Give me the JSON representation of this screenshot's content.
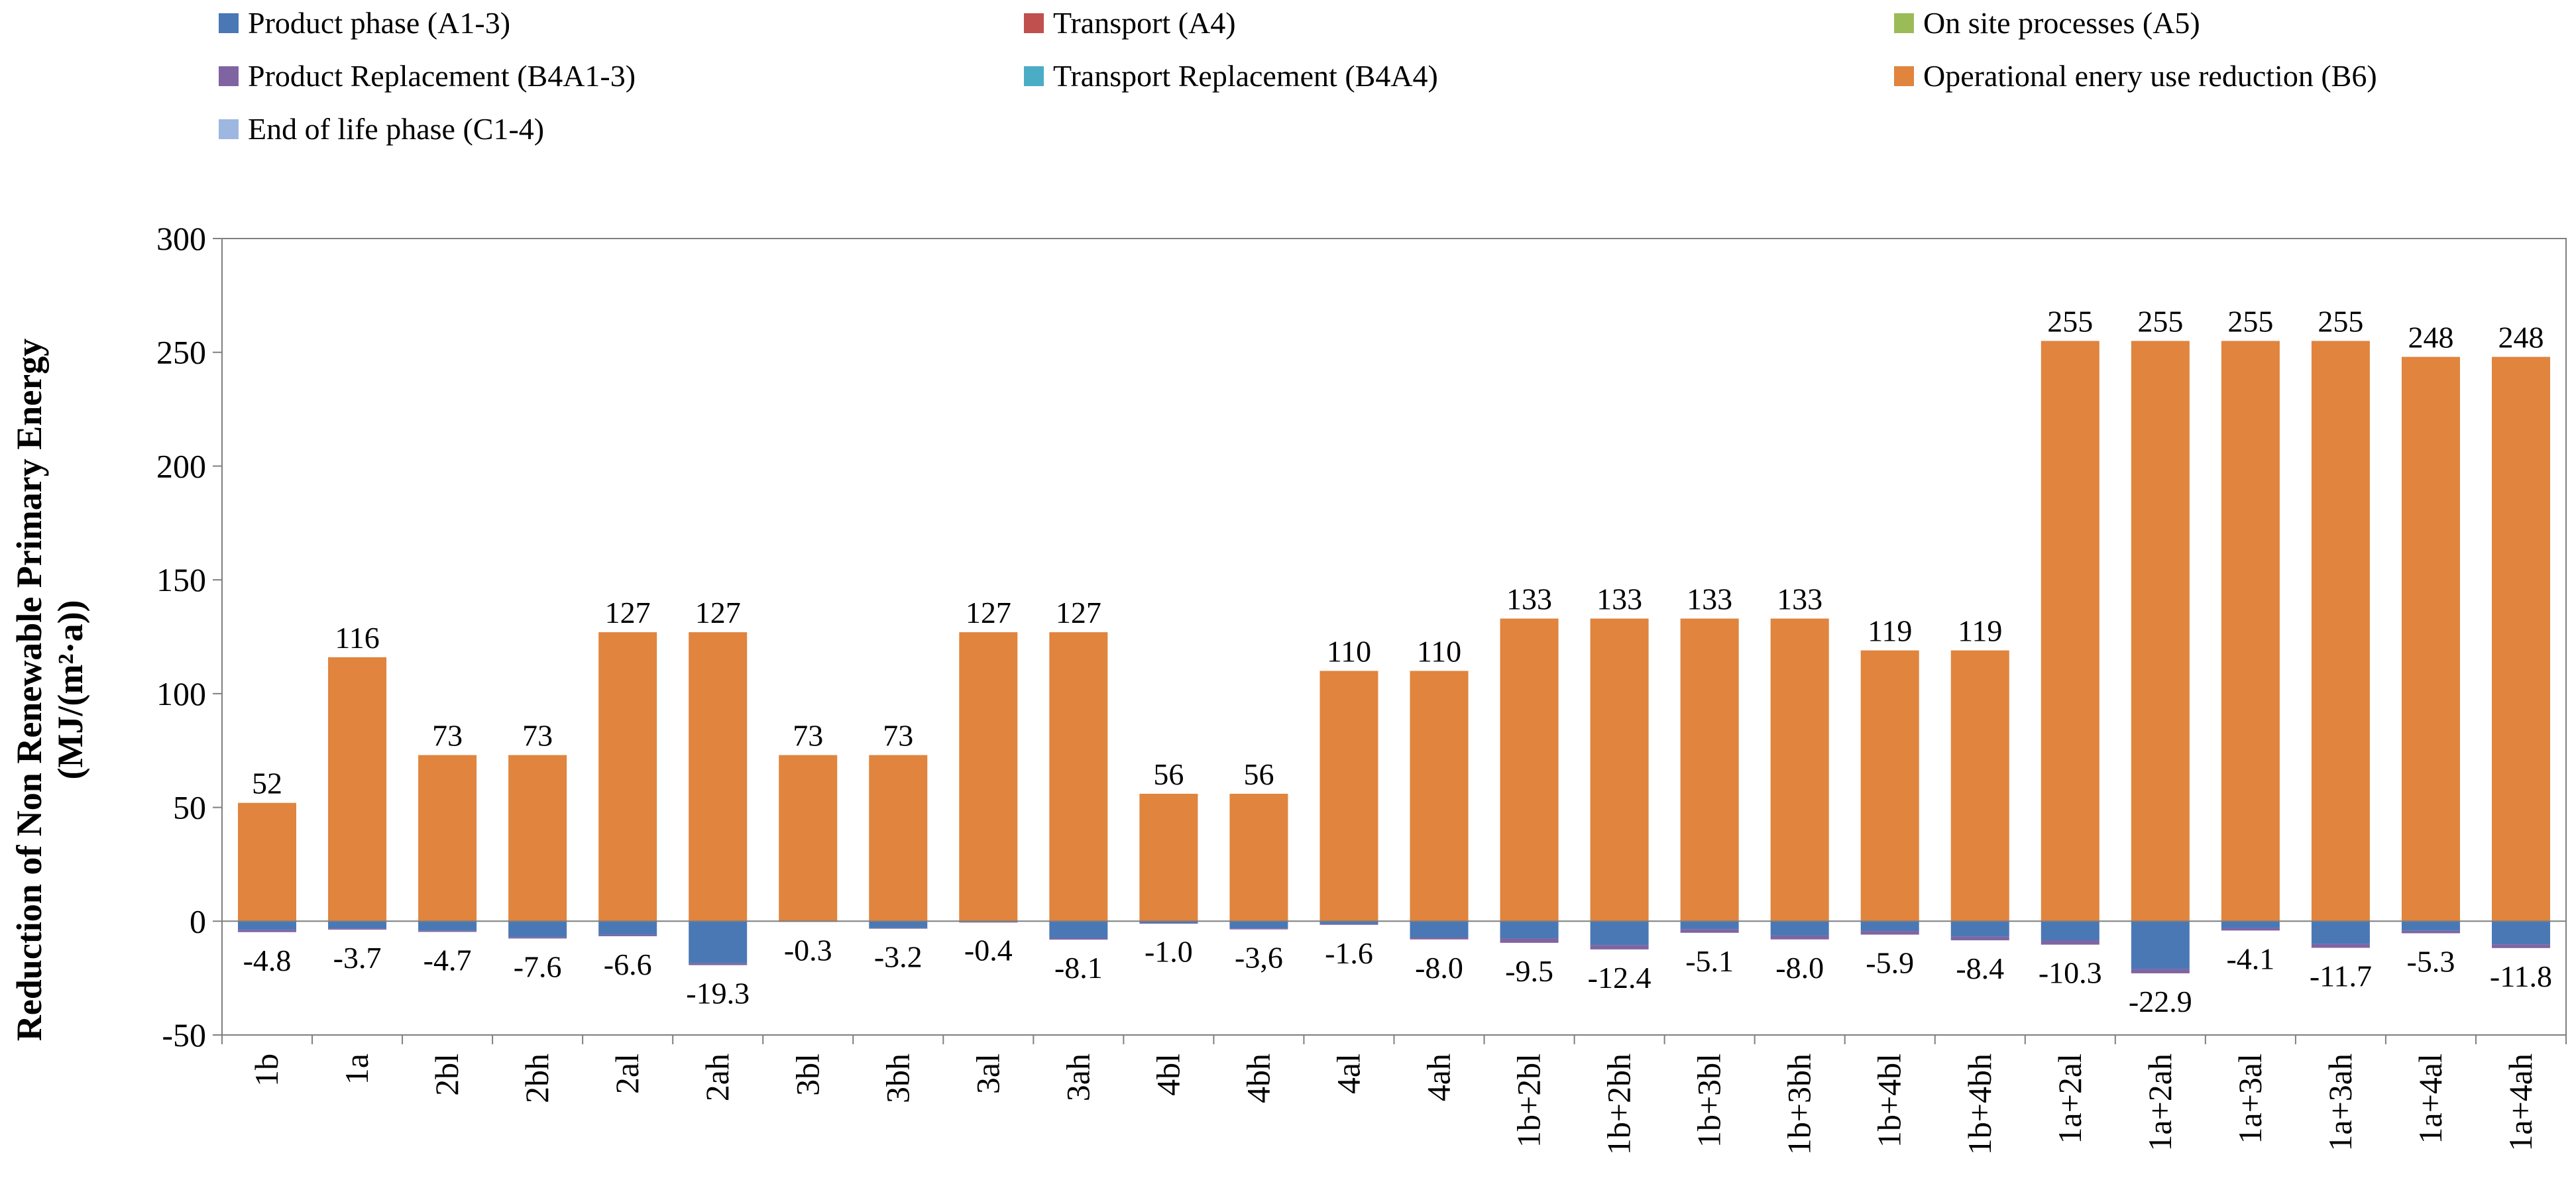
{
  "chart_data": {
    "type": "bar",
    "stacked": true,
    "title": "",
    "xlabel": "",
    "ylabel_line1": "Reduction of Non Renewable Primary Energy",
    "ylabel_line2": "(MJ/(m²·a))",
    "ylim": [
      -50,
      300
    ],
    "yticks": [
      -50,
      0,
      50,
      100,
      150,
      200,
      250,
      300
    ],
    "grid": false,
    "legend_position": "top",
    "categories": [
      "1b",
      "1a",
      "2bl",
      "2bh",
      "2al",
      "2ah",
      "3bl",
      "3bh",
      "3al",
      "3ah",
      "4bl",
      "4bh",
      "4al",
      "4ah",
      "1b+2bl",
      "1b+2bh",
      "1b+3bl",
      "1b+3bh",
      "1b+4bl",
      "1b+4bh",
      "1a+2al",
      "1a+2ah",
      "1a+3al",
      "1a+3ah",
      "1a+4al",
      "1a+4ah"
    ],
    "positive_labels": [
      "52",
      "116",
      "73",
      "73",
      "127",
      "127",
      "73",
      "73",
      "127",
      "127",
      "56",
      "56",
      "110",
      "110",
      "133",
      "133",
      "133",
      "133",
      "119",
      "119",
      "255",
      "255",
      "255",
      "255",
      "248",
      "248"
    ],
    "negative_labels": [
      "-4.8",
      "-3.7",
      "-4.7",
      "-7.6",
      "-6.6",
      "-19.3",
      "-0.3",
      "-3.2",
      "-0.4",
      "-8.1",
      "-1.0",
      "-3,6",
      "-1.6",
      "-8.0",
      "-9.5",
      "-12.4",
      "-5.1",
      "-8.0",
      "-5.9",
      "-8.4",
      "-10.3",
      "-22.9",
      "-4.1",
      "-11.7",
      "-5.3",
      "-11.8"
    ],
    "series": [
      {
        "name": "Product phase (A1-3)",
        "color": "#4a78b5",
        "values": [
          -3.8,
          -3.2,
          -4.2,
          -7.0,
          -6.0,
          -18.5,
          -0.3,
          -3.0,
          -0.3,
          -7.5,
          -0.8,
          -3.2,
          -1.2,
          -7.2,
          -7.5,
          -10.5,
          -3.5,
          -6.3,
          -4.3,
          -6.8,
          -8.5,
          -21.0,
          -3.0,
          -10.0,
          -4.2,
          -10.2
        ]
      },
      {
        "name": "Transport (A4)",
        "color": "#c0504d",
        "values": [
          0,
          0,
          0,
          0,
          0,
          0,
          0,
          0,
          0,
          0,
          0,
          0,
          0,
          0,
          0,
          0,
          0,
          0,
          0,
          0,
          0,
          0,
          0,
          0,
          0,
          0
        ]
      },
      {
        "name": "On site processes (A5)",
        "color": "#9bbb59",
        "values": [
          0,
          0,
          0,
          0,
          0,
          0,
          0,
          0,
          0,
          0,
          0,
          0,
          0,
          0,
          0,
          0,
          0,
          0,
          0,
          0,
          0,
          0,
          0,
          0,
          0,
          0
        ]
      },
      {
        "name": "Product Replacement (B4A1-3)",
        "color": "#8064a2",
        "values": [
          -1.0,
          -0.5,
          -0.5,
          -0.6,
          -0.6,
          -0.8,
          0,
          -0.2,
          -0.1,
          -0.6,
          -0.2,
          -0.4,
          -0.4,
          -0.8,
          -2.0,
          -1.9,
          -1.6,
          -1.7,
          -1.6,
          -1.6,
          -1.8,
          -1.9,
          -1.1,
          -1.7,
          -1.1,
          -1.6
        ]
      },
      {
        "name": "Transport Replacement (B4A4)",
        "color": "#4bacc6",
        "values": [
          0,
          0,
          0,
          0,
          0,
          0,
          0,
          0,
          0,
          0,
          0,
          0,
          0,
          0,
          0,
          0,
          0,
          0,
          0,
          0,
          0,
          0,
          0,
          0,
          0,
          0
        ]
      },
      {
        "name": "Operational enery use reduction (B6)",
        "color": "#e0843e",
        "values": [
          52,
          116,
          73,
          73,
          127,
          127,
          73,
          73,
          127,
          127,
          56,
          56,
          110,
          110,
          133,
          133,
          133,
          133,
          119,
          119,
          255,
          255,
          255,
          255,
          248,
          248
        ]
      },
      {
        "name": "End of life phase (C1-4)",
        "color": "#9db7e0",
        "values": [
          0,
          0,
          0,
          0,
          0,
          0,
          0,
          0,
          0,
          0,
          0,
          0,
          0,
          0,
          0,
          0,
          0,
          0,
          0,
          0,
          0,
          0,
          0,
          0,
          0,
          0
        ]
      }
    ]
  }
}
